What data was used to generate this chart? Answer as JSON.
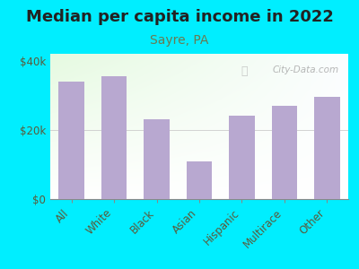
{
  "title": "Median per capita income in 2022",
  "subtitle": "Sayre, PA",
  "categories": [
    "All",
    "White",
    "Black",
    "Asian",
    "Hispanic",
    "Multirace",
    "Other"
  ],
  "values": [
    34000,
    35500,
    23000,
    11000,
    24000,
    27000,
    29500
  ],
  "bar_color": "#b8a8d0",
  "background_color": "#00eeff",
  "title_color": "#222222",
  "subtitle_color": "#6a7a50",
  "tick_label_color": "#5a5a3a",
  "ylim": [
    0,
    42000
  ],
  "yticks": [
    0,
    20000,
    40000
  ],
  "ytick_labels": [
    "$0",
    "$20k",
    "$40k"
  ],
  "watermark": "City-Data.com",
  "title_fontsize": 13,
  "subtitle_fontsize": 10,
  "tick_fontsize": 8.5
}
